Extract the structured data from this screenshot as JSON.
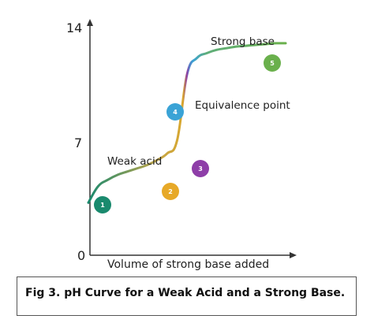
{
  "chart_data": {
    "type": "line",
    "title": "",
    "xlabel": "Volume of strong base added",
    "ylabel": "",
    "y_ticks": [
      "0",
      "7",
      "14"
    ],
    "ylim": [
      0,
      14
    ],
    "grid": false,
    "series": [
      {
        "x": [
          0,
          1,
          2,
          3,
          4,
          5,
          6,
          7,
          8,
          9,
          10,
          11,
          12,
          13,
          14,
          15,
          16,
          17,
          18,
          19,
          20
        ],
        "y": [
          3.2,
          4.2,
          4.6,
          4.9,
          5.1,
          5.3,
          5.5,
          5.8,
          6.2,
          7.0,
          11.0,
          12.0,
          12.3,
          12.5,
          12.6,
          12.7,
          12.75,
          12.8,
          12.85,
          12.9,
          12.9
        ],
        "colors": [
          "#1a8a6e",
          "#e7a928",
          "#8e3ea8",
          "#3aa3d6",
          "#6ab04c"
        ]
      }
    ],
    "annotations": [
      {
        "text": "Strong base"
      },
      {
        "text": "Equivalence point"
      },
      {
        "text": "Weak acid"
      }
    ],
    "markers": [
      {
        "label": "1",
        "color": "#1a8a6e"
      },
      {
        "label": "2",
        "color": "#e7a928"
      },
      {
        "label": "3",
        "color": "#8e3ea8"
      },
      {
        "label": "4",
        "color": "#3aa3d6"
      },
      {
        "label": "5",
        "color": "#6ab04c"
      }
    ]
  },
  "caption": "Fig 3. pH Curve for a Weak Acid and a Strong Base."
}
